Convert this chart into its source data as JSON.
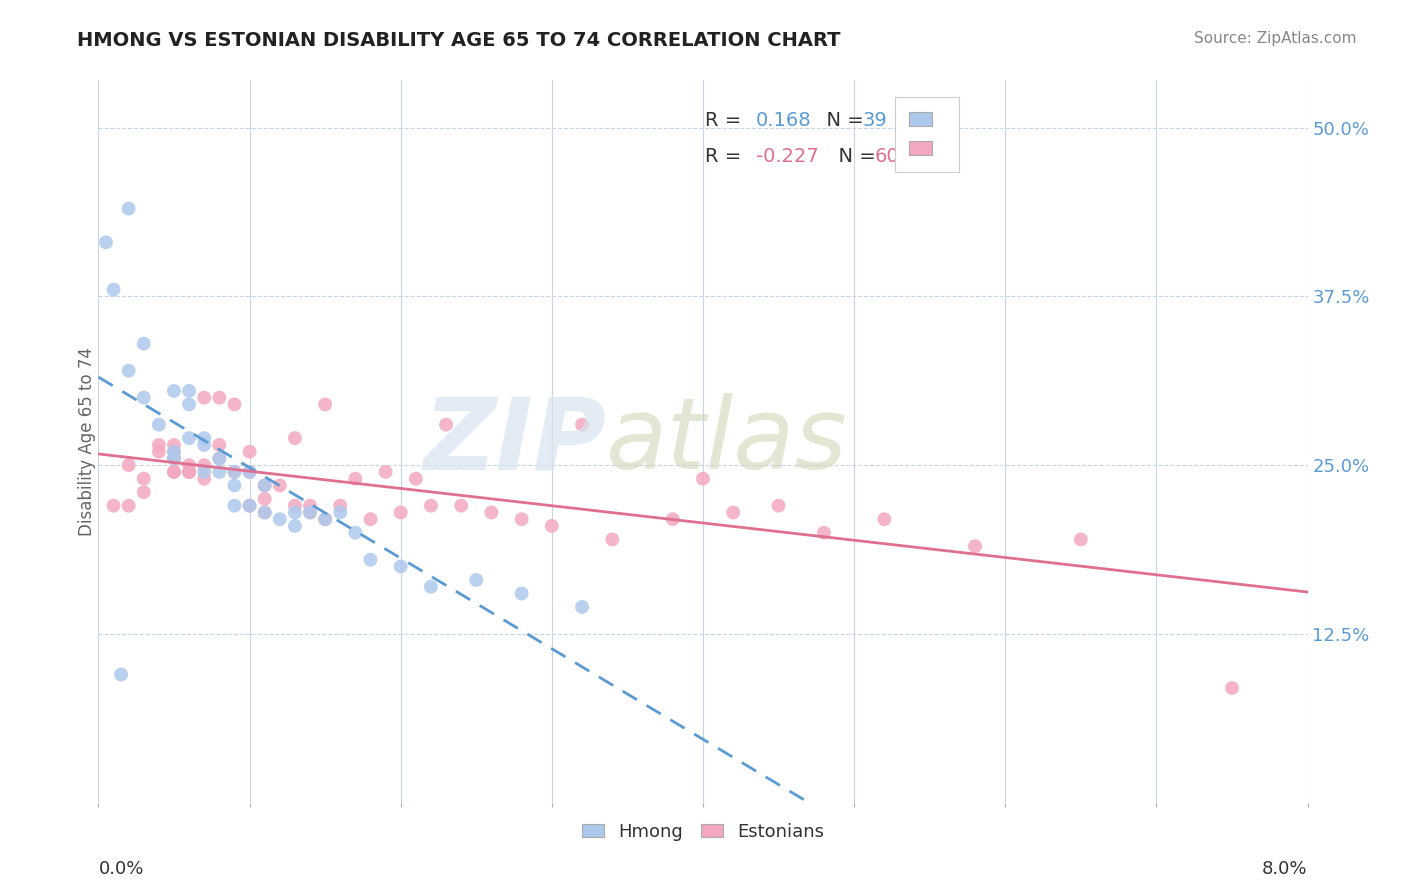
{
  "title": "HMONG VS ESTONIAN DISABILITY AGE 65 TO 74 CORRELATION CHART",
  "source": "Source: ZipAtlas.com",
  "ylabel_label": "Disability Age 65 to 74",
  "xmin": 0.0,
  "xmax": 0.08,
  "ymin": 0.0,
  "ymax": 0.535,
  "hmong_R": 0.168,
  "hmong_N": 39,
  "estonian_R": -0.227,
  "estonian_N": 60,
  "hmong_color": "#adc8ed",
  "hmong_line_color": "#5b9bd5",
  "estonian_color": "#f4a8c0",
  "estonian_line_color": "#e07090",
  "background_color": "white",
  "grid_color": "#c8d4e8",
  "hmong_x": [
    0.0005,
    0.001,
    0.0015,
    0.002,
    0.002,
    0.003,
    0.003,
    0.004,
    0.005,
    0.005,
    0.005,
    0.006,
    0.006,
    0.006,
    0.007,
    0.007,
    0.007,
    0.008,
    0.008,
    0.009,
    0.009,
    0.009,
    0.01,
    0.01,
    0.011,
    0.011,
    0.012,
    0.013,
    0.013,
    0.014,
    0.015,
    0.016,
    0.017,
    0.018,
    0.02,
    0.022,
    0.025,
    0.028,
    0.032
  ],
  "hmong_y": [
    0.415,
    0.38,
    0.095,
    0.44,
    0.32,
    0.34,
    0.3,
    0.28,
    0.26,
    0.305,
    0.255,
    0.305,
    0.295,
    0.27,
    0.27,
    0.265,
    0.245,
    0.255,
    0.245,
    0.245,
    0.235,
    0.22,
    0.245,
    0.22,
    0.235,
    0.215,
    0.21,
    0.215,
    0.205,
    0.215,
    0.21,
    0.215,
    0.2,
    0.18,
    0.175,
    0.16,
    0.165,
    0.155,
    0.145
  ],
  "estonian_x": [
    0.001,
    0.002,
    0.002,
    0.003,
    0.003,
    0.004,
    0.004,
    0.005,
    0.005,
    0.005,
    0.005,
    0.005,
    0.006,
    0.006,
    0.006,
    0.006,
    0.007,
    0.007,
    0.007,
    0.008,
    0.008,
    0.008,
    0.009,
    0.009,
    0.01,
    0.01,
    0.01,
    0.011,
    0.011,
    0.011,
    0.012,
    0.013,
    0.013,
    0.014,
    0.014,
    0.015,
    0.015,
    0.016,
    0.017,
    0.018,
    0.019,
    0.02,
    0.021,
    0.022,
    0.023,
    0.024,
    0.026,
    0.028,
    0.03,
    0.032,
    0.034,
    0.038,
    0.04,
    0.042,
    0.045,
    0.048,
    0.052,
    0.058,
    0.065,
    0.075
  ],
  "estonian_y": [
    0.22,
    0.25,
    0.22,
    0.24,
    0.23,
    0.265,
    0.26,
    0.245,
    0.26,
    0.265,
    0.245,
    0.255,
    0.245,
    0.245,
    0.25,
    0.245,
    0.24,
    0.25,
    0.3,
    0.265,
    0.255,
    0.3,
    0.245,
    0.295,
    0.26,
    0.245,
    0.22,
    0.235,
    0.225,
    0.215,
    0.235,
    0.22,
    0.27,
    0.22,
    0.215,
    0.21,
    0.295,
    0.22,
    0.24,
    0.21,
    0.245,
    0.215,
    0.24,
    0.22,
    0.28,
    0.22,
    0.215,
    0.21,
    0.205,
    0.28,
    0.195,
    0.21,
    0.24,
    0.215,
    0.22,
    0.2,
    0.21,
    0.19,
    0.195,
    0.085
  ],
  "ytick_vals": [
    0.125,
    0.25,
    0.375,
    0.5
  ],
  "ytick_labels": [
    "12.5%",
    "25.0%",
    "37.5%",
    "50.0%"
  ],
  "xtick_vals": [
    0.0,
    0.01,
    0.02,
    0.03,
    0.04,
    0.05,
    0.06,
    0.07,
    0.08
  ]
}
